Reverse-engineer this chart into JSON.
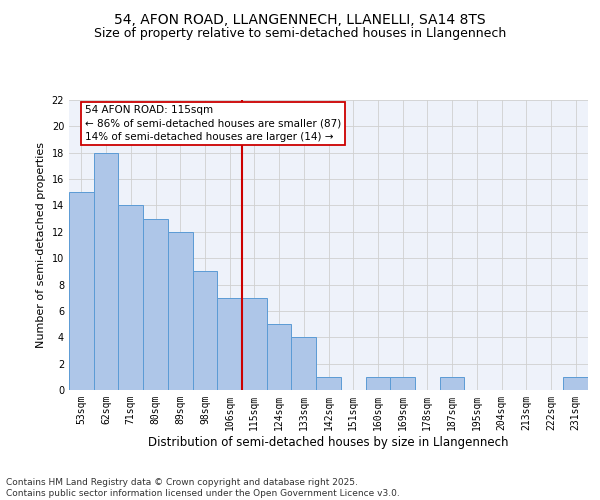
{
  "title1": "54, AFON ROAD, LLANGENNECH, LLANELLI, SA14 8TS",
  "title2": "Size of property relative to semi-detached houses in Llangennech",
  "xlabel": "Distribution of semi-detached houses by size in Llangennech",
  "ylabel": "Number of semi-detached properties",
  "categories": [
    "53sqm",
    "62sqm",
    "71sqm",
    "80sqm",
    "89sqm",
    "98sqm",
    "106sqm",
    "115sqm",
    "124sqm",
    "133sqm",
    "142sqm",
    "151sqm",
    "160sqm",
    "169sqm",
    "178sqm",
    "187sqm",
    "195sqm",
    "204sqm",
    "213sqm",
    "222sqm",
    "231sqm"
  ],
  "values": [
    15,
    18,
    14,
    13,
    12,
    9,
    7,
    7,
    5,
    4,
    1,
    0,
    1,
    1,
    0,
    1,
    0,
    0,
    0,
    0,
    1
  ],
  "bar_color": "#aec6e8",
  "bar_edge_color": "#5b9bd5",
  "annotation_line1": "54 AFON ROAD: 115sqm",
  "annotation_line2": "← 86% of semi-detached houses are smaller (87)",
  "annotation_line3": "14% of semi-detached houses are larger (14) →",
  "vline_x_index": 7,
  "vline_color": "#cc0000",
  "annotation_box_color": "#ffffff",
  "annotation_box_edge": "#cc0000",
  "ylim": [
    0,
    22
  ],
  "yticks": [
    0,
    2,
    4,
    6,
    8,
    10,
    12,
    14,
    16,
    18,
    20,
    22
  ],
  "grid_color": "#d0d0d0",
  "background_color": "#eef2fa",
  "footer": "Contains HM Land Registry data © Crown copyright and database right 2025.\nContains public sector information licensed under the Open Government Licence v3.0.",
  "title1_fontsize": 10,
  "title2_fontsize": 9,
  "xlabel_fontsize": 8.5,
  "ylabel_fontsize": 8,
  "tick_fontsize": 7,
  "annotation_fontsize": 7.5,
  "footer_fontsize": 6.5
}
